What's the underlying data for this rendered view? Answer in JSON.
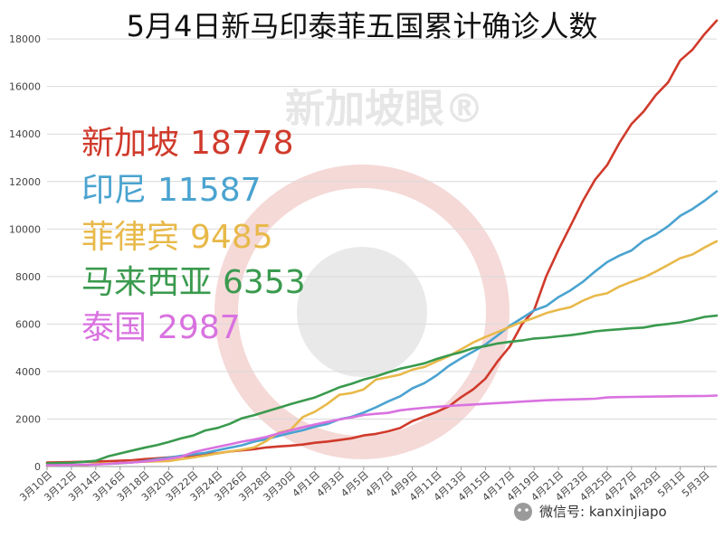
{
  "title": "5月4日新马印泰菲五国累计确诊人数",
  "watermark": "新加坡眼®",
  "footer": "微信号: kanxinjiapo",
  "chart_data": {
    "type": "line",
    "ylim": [
      0,
      18500
    ],
    "yticks": [
      0,
      2000,
      4000,
      6000,
      8000,
      10000,
      12000,
      14000,
      16000,
      18000
    ],
    "x": [
      "3月10日",
      "3月11日",
      "3月12日",
      "3月13日",
      "3月14日",
      "3月15日",
      "3月16日",
      "3月17日",
      "3月18日",
      "3月19日",
      "3月20日",
      "3月21日",
      "3月22日",
      "3月23日",
      "3月24日",
      "3月25日",
      "3月26日",
      "3月27日",
      "3月28日",
      "3月29日",
      "3月30日",
      "3月31日",
      "4月1日",
      "4月2日",
      "4月3日",
      "4月4日",
      "4月5日",
      "4月6日",
      "4月7日",
      "4月8日",
      "4月9日",
      "4月10日",
      "4月11日",
      "4月12日",
      "4月13日",
      "4月14日",
      "4月15日",
      "4月16日",
      "4月17日",
      "4月18日",
      "4月19日",
      "4月20日",
      "4月21日",
      "4月22日",
      "4月23日",
      "4月24日",
      "4月25日",
      "4月26日",
      "4月27日",
      "4月28日",
      "4月29日",
      "4月30日",
      "5月1日",
      "5月2日",
      "5月3日",
      "5月4日"
    ],
    "xtick_labels": [
      "3月10日",
      "3月12日",
      "3月14日",
      "3月16日",
      "3月18日",
      "3月20日",
      "3月22日",
      "3月24日",
      "3月26日",
      "3月28日",
      "3月30日",
      "4月1日",
      "4月3日",
      "4月5日",
      "4月7日",
      "4月9日",
      "4月11日",
      "4月13日",
      "4月15日",
      "4月17日",
      "4月19日",
      "4月21日",
      "4月23日",
      "4月25日",
      "4月27日",
      "4月29日",
      "5月1日",
      "5月3日"
    ],
    "series": [
      {
        "name": "新加坡",
        "total": "18778",
        "color": "#d03a2b",
        "values": [
          166,
          178,
          187,
          200,
          212,
          226,
          243,
          266,
          313,
          345,
          385,
          432,
          455,
          509,
          558,
          631,
          683,
          732,
          802,
          844,
          879,
          926,
          1000,
          1049,
          1114,
          1189,
          1309,
          1375,
          1481,
          1623,
          1910,
          2108,
          2299,
          2532,
          2918,
          3252,
          3699,
          4427,
          5050,
          5992,
          6588,
          8014,
          9125,
          10141,
          11178,
          12075,
          12693,
          13624,
          14423,
          14951,
          15641,
          16169,
          17101,
          17548,
          18205,
          18778
        ]
      },
      {
        "name": "印尼",
        "total": "11587",
        "color": "#4aa3d0",
        "values": [
          27,
          34,
          34,
          69,
          96,
          117,
          134,
          172,
          227,
          309,
          369,
          450,
          514,
          579,
          686,
          790,
          893,
          1046,
          1155,
          1285,
          1414,
          1528,
          1677,
          1790,
          1986,
          2092,
          2273,
          2491,
          2738,
          2956,
          3293,
          3512,
          3842,
          4241,
          4557,
          4839,
          5136,
          5516,
          5923,
          6248,
          6575,
          6760,
          7135,
          7418,
          7775,
          8211,
          8607,
          8882,
          9096,
          9511,
          9771,
          10118,
          10551,
          10843,
          11192,
          11587
        ]
      },
      {
        "name": "菲律宾",
        "total": "9485",
        "color": "#e8b94a",
        "values": [
          33,
          49,
          52,
          64,
          111,
          140,
          142,
          187,
          202,
          217,
          230,
          307,
          380,
          462,
          552,
          636,
          707,
          803,
          1075,
          1418,
          1546,
          2084,
          2311,
          2633,
          3018,
          3094,
          3246,
          3660,
          3764,
          3870,
          4076,
          4195,
          4428,
          4648,
          4932,
          5223,
          5453,
          5660,
          5878,
          6087,
          6259,
          6459,
          6599,
          6710,
          6981,
          7192,
          7294,
          7579,
          7777,
          7958,
          8212,
          8488,
          8772,
          8928,
          9223,
          9485
        ]
      },
      {
        "name": "马来西亚",
        "total": "6353",
        "color": "#3a9a4e",
        "values": [
          129,
          149,
          158,
          197,
          238,
          428,
          553,
          673,
          790,
          900,
          1030,
          1183,
          1306,
          1518,
          1624,
          1796,
          2031,
          2161,
          2320,
          2470,
          2626,
          2766,
          2908,
          3116,
          3333,
          3483,
          3662,
          3793,
          3963,
          4119,
          4228,
          4346,
          4530,
          4683,
          4817,
          4987,
          5072,
          5182,
          5251,
          5305,
          5389,
          5425,
          5482,
          5532,
          5603,
          5691,
          5742,
          5780,
          5820,
          5851,
          5945,
          6002,
          6071,
          6176,
          6298,
          6353
        ]
      },
      {
        "name": "泰国",
        "total": "2987",
        "color": "#d972e0",
        "values": [
          53,
          59,
          70,
          75,
          82,
          114,
          147,
          177,
          212,
          272,
          322,
          411,
          599,
          721,
          827,
          934,
          1045,
          1136,
          1245,
          1388,
          1524,
          1651,
          1771,
          1875,
          1978,
          2067,
          2169,
          2220,
          2258,
          2369,
          2423,
          2473,
          2518,
          2551,
          2579,
          2613,
          2643,
          2672,
          2700,
          2733,
          2765,
          2792,
          2811,
          2826,
          2839,
          2854,
          2907,
          2922,
          2931,
          2938,
          2947,
          2954,
          2960,
          2966,
          2969,
          2987
        ]
      }
    ]
  }
}
